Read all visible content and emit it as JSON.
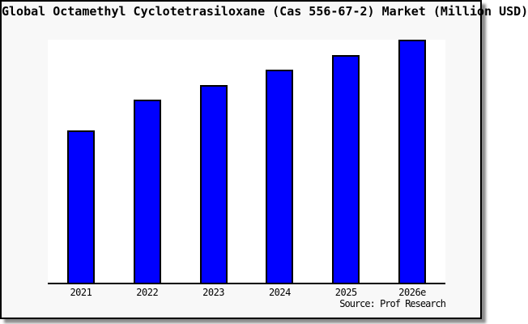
{
  "window": {
    "title": "Global Octamethyl Cyclotetrasiloxane (Cas 556-67-2) Market (Million USD)",
    "source_credit": "Source: Prof Research"
  },
  "chart_data": {
    "type": "bar",
    "title": "Global Octamethyl Cyclotetrasiloxane (Cas 556-67-2) Market (Million USD)",
    "xlabel": "",
    "ylabel": "",
    "categories": [
      "2021",
      "2022",
      "2023",
      "2024",
      "2025",
      "2026e"
    ],
    "values": [
      62.7,
      75.2,
      81.3,
      87.7,
      93.7,
      100
    ],
    "value_note": "No y-axis ticks or gridlines shown; values are a relative index (2026e = 100) estimated from bar heights",
    "ylim": [
      0,
      100
    ],
    "grid": false,
    "legend_position": "none",
    "bar_color": "#0000ff",
    "bar_border_color": "#000000",
    "source": "Source: Prof Research"
  },
  "colors": {
    "window_background": "#f8f8f8",
    "plot_background": "#ffffff",
    "bar_fill": "#0000ff",
    "bar_border": "#000000",
    "axis_line": "#000000",
    "text": "#000000",
    "window_border": "#000000"
  }
}
